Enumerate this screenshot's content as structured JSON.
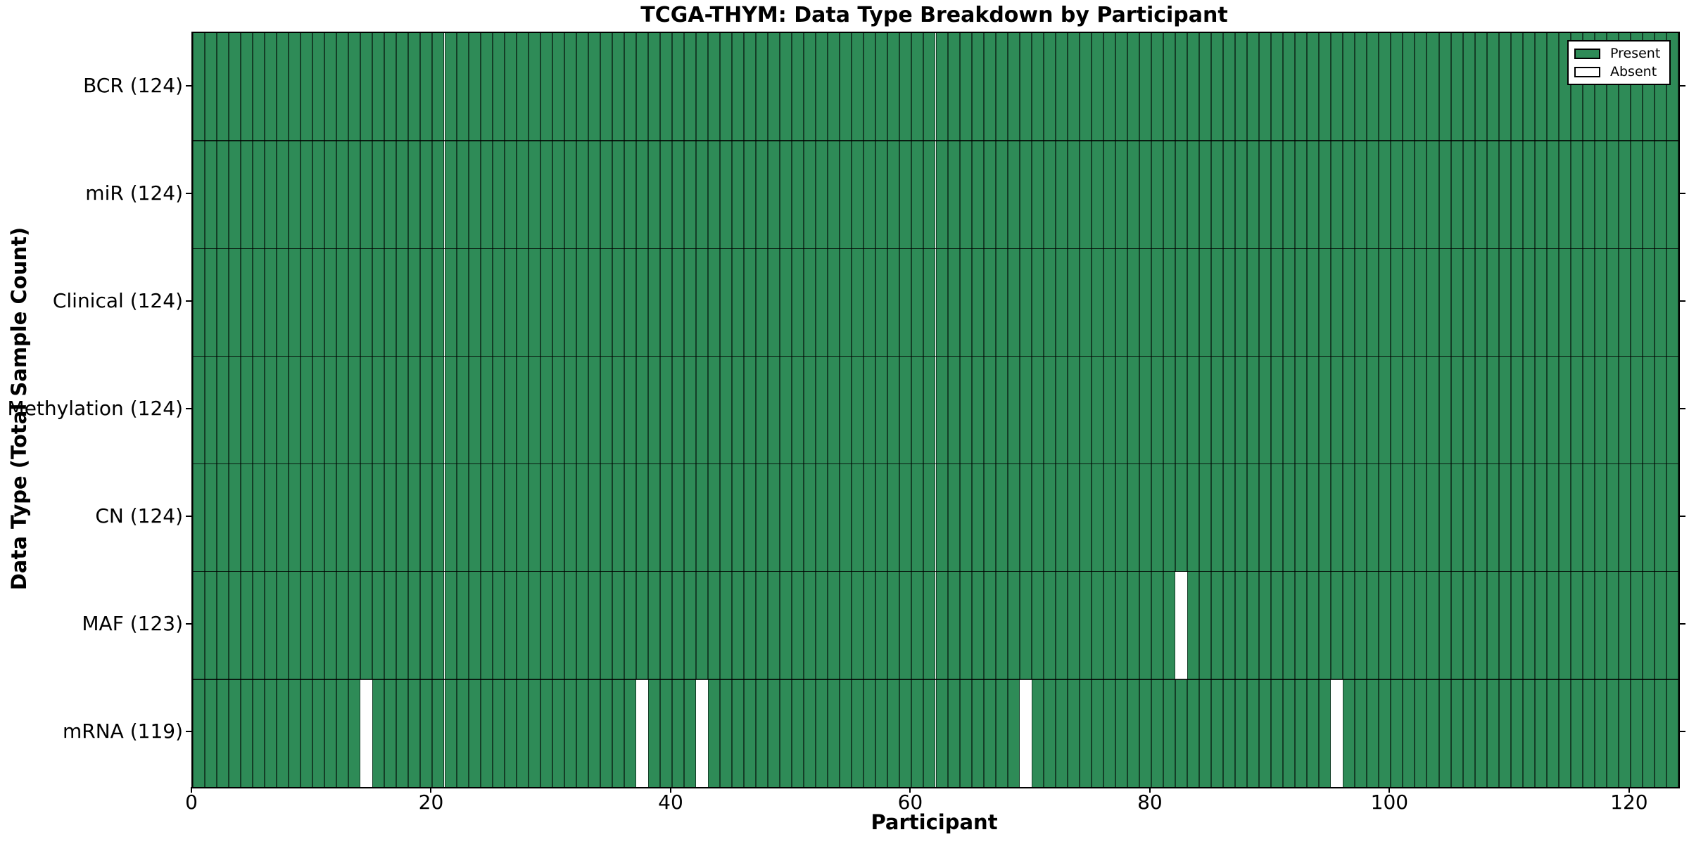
{
  "title": "TCGA-THYM: Data Type Breakdown by Participant",
  "xlabel": "Participant",
  "ylabel": "Data Type (Total Sample Count)",
  "legend": {
    "present_label": "Present",
    "absent_label": "Absent",
    "position": "upper right"
  },
  "colors": {
    "present": "#2e8b57",
    "absent": "#ffffff",
    "bar_edge": "rgba(0,0,0,0.55)",
    "spine": "#000000"
  },
  "chart_data": {
    "type": "heatmap",
    "title": "TCGA-THYM: Data Type Breakdown by Participant",
    "xlabel": "Participant",
    "ylabel": "Data Type (Total Sample Count)",
    "n_participants": 124,
    "xlim": [
      0,
      124
    ],
    "x_ticks": [
      0,
      20,
      40,
      60,
      80,
      100,
      120
    ],
    "legend_position": "upper right",
    "grid": false,
    "rows": [
      {
        "label": "BCR (124)",
        "data_type": "BCR",
        "total_sample_count": 124,
        "absent_participants": []
      },
      {
        "label": "miR (124)",
        "data_type": "miR",
        "total_sample_count": 124,
        "absent_participants": []
      },
      {
        "label": "Clinical (124)",
        "data_type": "Clinical",
        "total_sample_count": 124,
        "absent_participants": []
      },
      {
        "label": "Methylation (124)",
        "data_type": "Methylation",
        "total_sample_count": 124,
        "absent_participants": []
      },
      {
        "label": "CN (124)",
        "data_type": "CN",
        "total_sample_count": 124,
        "absent_participants": []
      },
      {
        "label": "MAF (123)",
        "data_type": "MAF",
        "total_sample_count": 123,
        "absent_participants": [
          82
        ]
      },
      {
        "label": "mRNA (119)",
        "data_type": "mRNA",
        "total_sample_count": 119,
        "absent_participants": [
          14,
          37,
          42,
          69,
          95
        ]
      }
    ]
  }
}
